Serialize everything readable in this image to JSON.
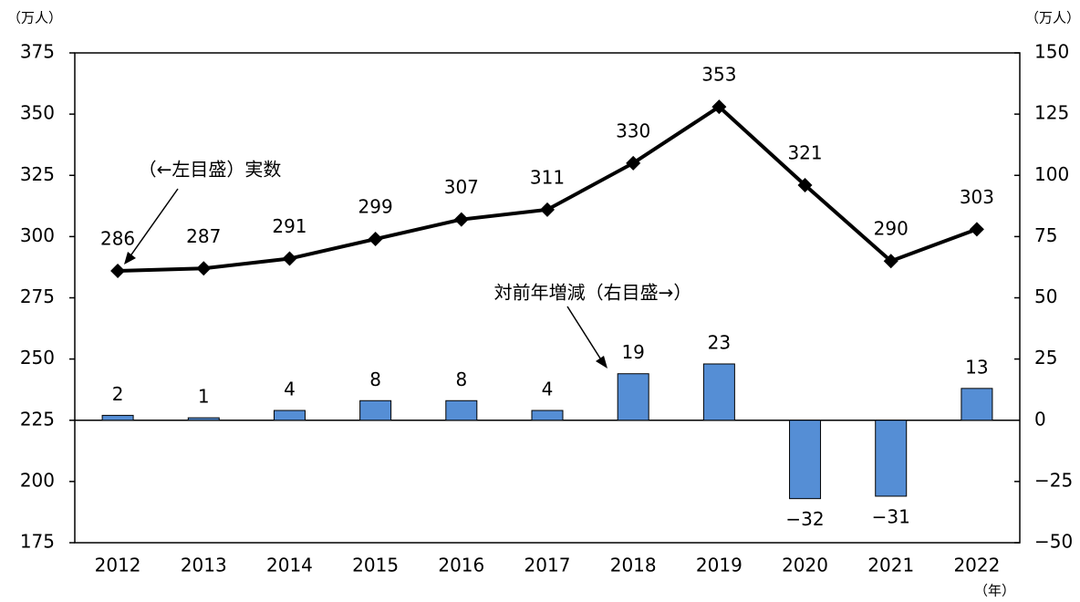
{
  "chart_data": {
    "type": "combo",
    "y_label": "（万人）",
    "y2_label": "（万人）",
    "x_label": "（年）",
    "categories": [
      "2012",
      "2013",
      "2014",
      "2015",
      "2016",
      "2017",
      "2018",
      "2019",
      "2020",
      "2021",
      "2022"
    ],
    "ylim": [
      175,
      375
    ],
    "yticks": [
      175,
      200,
      225,
      250,
      275,
      300,
      325,
      350,
      375
    ],
    "y2lim": [
      -50,
      150
    ],
    "y2ticks": [
      {
        "value": -50,
        "label": "−50"
      },
      {
        "value": -25,
        "label": "−25"
      },
      0,
      25,
      50,
      75,
      100,
      125,
      150
    ],
    "grid": false,
    "series": [
      {
        "name": "（←左目盛）実数",
        "type": "line",
        "color": "#000000",
        "values": [
          286,
          287,
          291,
          299,
          307,
          311,
          330,
          353,
          321,
          290,
          303
        ]
      },
      {
        "name": "対前年増減（右目盛→）",
        "type": "bar",
        "axis": "y2",
        "color": "#558ed5",
        "values": [
          2,
          1,
          4,
          8,
          8,
          4,
          19,
          23,
          -32,
          -31,
          13
        ],
        "value_labels": [
          "2",
          "1",
          "4",
          "8",
          "8",
          "4",
          "19",
          "23",
          "−32",
          "−31",
          "13"
        ]
      }
    ]
  }
}
